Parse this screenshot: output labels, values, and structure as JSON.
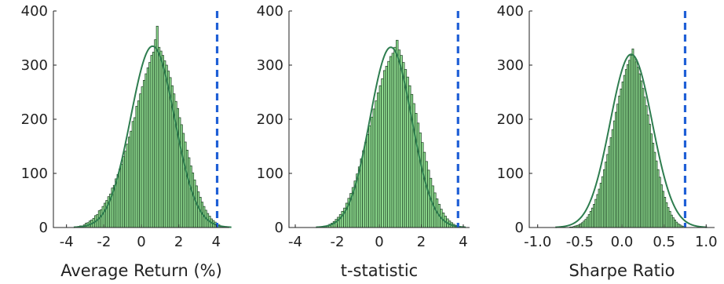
{
  "chart_data": [
    {
      "type": "histogram",
      "xlabel": "Average Return (%)",
      "ylabel": "",
      "xlim": [
        -4.7,
        4.7
      ],
      "ylim": [
        0,
        400
      ],
      "xticks": [
        -4,
        -2,
        0,
        2,
        4
      ],
      "xtick_labels": [
        "-4",
        "-2",
        "0",
        "2",
        "4"
      ],
      "yticks": [
        0,
        100,
        200,
        300,
        400
      ],
      "ytick_labels": [
        "0",
        "100",
        "200",
        "300",
        "400"
      ],
      "bin_width": 0.1,
      "bins": [
        [
          -3.5,
          1
        ],
        [
          -3.4,
          2
        ],
        [
          -3.3,
          3
        ],
        [
          -3.2,
          3
        ],
        [
          -3.1,
          5
        ],
        [
          -3.0,
          8
        ],
        [
          -2.9,
          9
        ],
        [
          -2.8,
          12
        ],
        [
          -2.7,
          14
        ],
        [
          -2.6,
          17
        ],
        [
          -2.5,
          22
        ],
        [
          -2.4,
          24
        ],
        [
          -2.3,
          31
        ],
        [
          -2.2,
          33
        ],
        [
          -2.1,
          39
        ],
        [
          -2.0,
          45
        ],
        [
          -1.9,
          50
        ],
        [
          -1.8,
          57
        ],
        [
          -1.7,
          62
        ],
        [
          -1.6,
          73
        ],
        [
          -1.5,
          78
        ],
        [
          -1.4,
          90
        ],
        [
          -1.3,
          98
        ],
        [
          -1.2,
          108
        ],
        [
          -1.1,
          117
        ],
        [
          -1.0,
          131
        ],
        [
          -0.9,
          141
        ],
        [
          -0.8,
          154
        ],
        [
          -0.7,
          167
        ],
        [
          -0.6,
          178
        ],
        [
          -0.5,
          196
        ],
        [
          -0.4,
          203
        ],
        [
          -0.3,
          224
        ],
        [
          -0.2,
          234
        ],
        [
          -0.1,
          247
        ],
        [
          0.0,
          260
        ],
        [
          0.1,
          272
        ],
        [
          0.2,
          284
        ],
        [
          0.3,
          295
        ],
        [
          0.4,
          305
        ],
        [
          0.5,
          318
        ],
        [
          0.6,
          324
        ],
        [
          0.7,
          347
        ],
        [
          0.8,
          372
        ],
        [
          0.9,
          333
        ],
        [
          1.0,
          326
        ],
        [
          1.1,
          318
        ],
        [
          1.2,
          308
        ],
        [
          1.3,
          300
        ],
        [
          1.4,
          289
        ],
        [
          1.5,
          277
        ],
        [
          1.6,
          262
        ],
        [
          1.7,
          247
        ],
        [
          1.8,
          233
        ],
        [
          1.9,
          220
        ],
        [
          2.0,
          203
        ],
        [
          2.1,
          190
        ],
        [
          2.2,
          174
        ],
        [
          2.3,
          158
        ],
        [
          2.4,
          143
        ],
        [
          2.5,
          129
        ],
        [
          2.6,
          114
        ],
        [
          2.7,
          101
        ],
        [
          2.8,
          88
        ],
        [
          2.9,
          77
        ],
        [
          3.0,
          66
        ],
        [
          3.1,
          56
        ],
        [
          3.2,
          47
        ],
        [
          3.3,
          39
        ],
        [
          3.4,
          32
        ],
        [
          3.5,
          26
        ],
        [
          3.6,
          21
        ],
        [
          3.7,
          16
        ],
        [
          3.8,
          13
        ],
        [
          3.9,
          10
        ],
        [
          4.0,
          7
        ],
        [
          4.1,
          5
        ],
        [
          4.2,
          3
        ],
        [
          4.3,
          2
        ],
        [
          4.4,
          1
        ]
      ],
      "fit": {
        "type": "normal",
        "mean": 0.6,
        "sd": 1.17,
        "peak": 335
      },
      "reference_line": {
        "x": 4.05,
        "style": "dashed",
        "color": "#1f5fd6"
      }
    },
    {
      "type": "histogram",
      "xlabel": "t-statistic",
      "ylabel": "",
      "xlim": [
        -4.3,
        4.3
      ],
      "ylim": [
        0,
        400
      ],
      "xticks": [
        -4,
        -2,
        0,
        2,
        4
      ],
      "xtick_labels": [
        "-4",
        "-2",
        "0",
        "2",
        "4"
      ],
      "yticks": [
        0,
        100,
        200,
        300,
        400
      ],
      "ytick_labels": [
        "0",
        "100",
        "200",
        "300",
        "400"
      ],
      "bin_width": 0.1,
      "bins": [
        [
          -2.7,
          2
        ],
        [
          -2.6,
          3
        ],
        [
          -2.5,
          4
        ],
        [
          -2.4,
          6
        ],
        [
          -2.3,
          8
        ],
        [
          -2.2,
          11
        ],
        [
          -2.1,
          15
        ],
        [
          -2.0,
          19
        ],
        [
          -1.9,
          24
        ],
        [
          -1.8,
          30
        ],
        [
          -1.7,
          36
        ],
        [
          -1.6,
          45
        ],
        [
          -1.5,
          54
        ],
        [
          -1.4,
          63
        ],
        [
          -1.3,
          74
        ],
        [
          -1.2,
          86
        ],
        [
          -1.1,
          99
        ],
        [
          -1.0,
          112
        ],
        [
          -0.9,
          127
        ],
        [
          -0.8,
          142
        ],
        [
          -0.7,
          157
        ],
        [
          -0.6,
          172
        ],
        [
          -0.5,
          188
        ],
        [
          -0.4,
          204
        ],
        [
          -0.3,
          219
        ],
        [
          -0.2,
          234
        ],
        [
          -0.1,
          249
        ],
        [
          0.0,
          262
        ],
        [
          0.1,
          275
        ],
        [
          0.2,
          290
        ],
        [
          0.3,
          298
        ],
        [
          0.4,
          307
        ],
        [
          0.5,
          316
        ],
        [
          0.6,
          322
        ],
        [
          0.7,
          333
        ],
        [
          0.8,
          346
        ],
        [
          0.9,
          328
        ],
        [
          1.0,
          318
        ],
        [
          1.1,
          305
        ],
        [
          1.2,
          292
        ],
        [
          1.3,
          278
        ],
        [
          1.4,
          262
        ],
        [
          1.5,
          246
        ],
        [
          1.6,
          229
        ],
        [
          1.7,
          211
        ],
        [
          1.8,
          193
        ],
        [
          1.9,
          175
        ],
        [
          2.0,
          157
        ],
        [
          2.1,
          139
        ],
        [
          2.2,
          122
        ],
        [
          2.3,
          106
        ],
        [
          2.4,
          91
        ],
        [
          2.5,
          77
        ],
        [
          2.6,
          64
        ],
        [
          2.7,
          53
        ],
        [
          2.8,
          43
        ],
        [
          2.9,
          34
        ],
        [
          3.0,
          27
        ],
        [
          3.1,
          21
        ],
        [
          3.2,
          16
        ],
        [
          3.3,
          12
        ],
        [
          3.4,
          9
        ],
        [
          3.5,
          6
        ],
        [
          3.6,
          4
        ],
        [
          3.7,
          3
        ],
        [
          3.8,
          2
        ]
      ],
      "fit": {
        "type": "normal",
        "mean": 0.55,
        "sd": 0.99,
        "peak": 333
      },
      "reference_line": {
        "x": 3.75,
        "style": "dashed",
        "color": "#1f5fd6"
      }
    },
    {
      "type": "histogram",
      "xlabel": "Sharpe Ratio",
      "ylabel": "",
      "xlim": [
        -1.1,
        1.1
      ],
      "ylim": [
        0,
        400
      ],
      "xticks": [
        -1.0,
        -0.5,
        0.0,
        0.5,
        1.0
      ],
      "xtick_labels": [
        "-1.0",
        "-0.5",
        "0.0",
        "0.5",
        "1.0"
      ],
      "yticks": [
        0,
        100,
        200,
        300,
        400
      ],
      "ytick_labels": [
        "0",
        "100",
        "200",
        "300",
        "400"
      ],
      "bin_width": 0.02,
      "bins": [
        [
          -0.62,
          1
        ],
        [
          -0.6,
          1
        ],
        [
          -0.58,
          2
        ],
        [
          -0.56,
          3
        ],
        [
          -0.54,
          4
        ],
        [
          -0.52,
          5
        ],
        [
          -0.5,
          7
        ],
        [
          -0.48,
          9
        ],
        [
          -0.46,
          12
        ],
        [
          -0.44,
          15
        ],
        [
          -0.42,
          19
        ],
        [
          -0.4,
          24
        ],
        [
          -0.38,
          30
        ],
        [
          -0.36,
          36
        ],
        [
          -0.34,
          43
        ],
        [
          -0.32,
          52
        ],
        [
          -0.3,
          61
        ],
        [
          -0.28,
          71
        ],
        [
          -0.26,
          82
        ],
        [
          -0.24,
          94
        ],
        [
          -0.22,
          107
        ],
        [
          -0.2,
          121
        ],
        [
          -0.18,
          135
        ],
        [
          -0.16,
          150
        ],
        [
          -0.14,
          166
        ],
        [
          -0.12,
          181
        ],
        [
          -0.1,
          197
        ],
        [
          -0.08,
          213
        ],
        [
          -0.06,
          228
        ],
        [
          -0.04,
          243
        ],
        [
          -0.02,
          256
        ],
        [
          0.0,
          269
        ],
        [
          0.02,
          281
        ],
        [
          0.04,
          292
        ],
        [
          0.06,
          301
        ],
        [
          0.08,
          309
        ],
        [
          0.1,
          318
        ],
        [
          0.12,
          330
        ],
        [
          0.14,
          315
        ],
        [
          0.16,
          306
        ],
        [
          0.18,
          296
        ],
        [
          0.2,
          284
        ],
        [
          0.22,
          271
        ],
        [
          0.24,
          257
        ],
        [
          0.26,
          241
        ],
        [
          0.28,
          225
        ],
        [
          0.3,
          208
        ],
        [
          0.32,
          191
        ],
        [
          0.34,
          173
        ],
        [
          0.36,
          156
        ],
        [
          0.38,
          139
        ],
        [
          0.4,
          123
        ],
        [
          0.42,
          107
        ],
        [
          0.44,
          93
        ],
        [
          0.46,
          79
        ],
        [
          0.48,
          67
        ],
        [
          0.5,
          56
        ],
        [
          0.52,
          46
        ],
        [
          0.54,
          37
        ],
        [
          0.56,
          30
        ],
        [
          0.58,
          23
        ],
        [
          0.6,
          18
        ],
        [
          0.62,
          14
        ],
        [
          0.64,
          10
        ],
        [
          0.66,
          7
        ],
        [
          0.68,
          5
        ],
        [
          0.7,
          3
        ],
        [
          0.72,
          2
        ],
        [
          0.74,
          1
        ]
      ],
      "fit": {
        "type": "normal",
        "mean": 0.11,
        "sd": 0.25,
        "peak": 320
      },
      "reference_line": {
        "x": 0.75,
        "style": "dashed",
        "color": "#1f5fd6"
      }
    }
  ],
  "colors": {
    "bar_fill": "#8fdc8f",
    "bar_edge": "#1b3d23",
    "fit_line": "#2e7d4f",
    "axis": "#222222"
  }
}
